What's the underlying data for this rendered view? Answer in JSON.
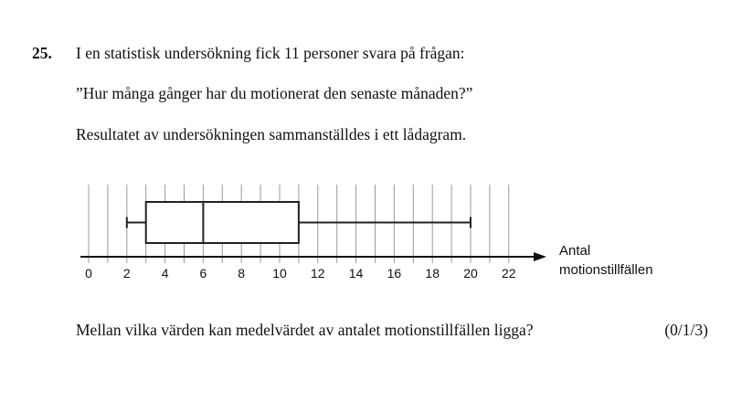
{
  "problem": {
    "number": "25.",
    "intro": "I en statistisk undersökning fick 11 personer svara på frågan:",
    "quote": "”Hur många gånger har du motionerat den senaste månaden?”",
    "result": "Resultatet av undersökningen sammanställdes i ett lådagram.",
    "question": "Mellan vilka värden kan medelvärdet av antalet motionstillfällen ligga?",
    "points": "(0/1/3)"
  },
  "chart_data": {
    "type": "boxplot",
    "xlabel_line1": "Antal",
    "xlabel_line2": "motionstillfällen",
    "xlim": [
      0,
      22
    ],
    "tick_labels": [
      "0",
      "2",
      "4",
      "6",
      "8",
      "10",
      "12",
      "14",
      "16",
      "18",
      "20",
      "22"
    ],
    "grid": true,
    "min": 2,
    "q1": 3,
    "median": 6,
    "q3": 11,
    "max": 20
  }
}
